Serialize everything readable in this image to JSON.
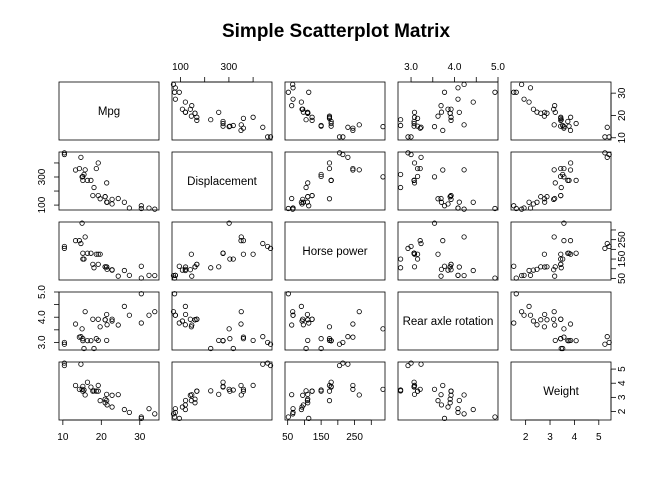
{
  "chart_data": {
    "type": "scatter",
    "title": "Simple Scatterplot Matrix",
    "variables": [
      {
        "key": "mpg",
        "label": "Mpg",
        "lim": [
          9,
          35
        ],
        "ticks": [
          10,
          20,
          30
        ],
        "tick_labels": [
          "10",
          "20",
          "30"
        ]
      },
      {
        "key": "disp",
        "label": "Displacement",
        "lim": [
          65,
          478
        ],
        "ticks": [
          100,
          200,
          300,
          400
        ],
        "tick_labels": [
          "100",
          "",
          "300",
          ""
        ]
      },
      {
        "key": "hp",
        "label": "Horse power",
        "lim": [
          42,
          341
        ],
        "ticks": [
          50,
          100,
          150,
          200,
          250,
          300
        ],
        "tick_labels": [
          "50",
          "",
          "150",
          "",
          "250",
          ""
        ]
      },
      {
        "key": "drat",
        "label": "Rear axle rotation",
        "lim": [
          2.7,
          5.0
        ],
        "ticks": [
          3.0,
          3.5,
          4.0,
          4.5,
          5.0
        ],
        "tick_labels": [
          "3.0",
          "",
          "4.0",
          "",
          "5.0"
        ]
      },
      {
        "key": "wt",
        "label": "Weight",
        "lim": [
          1.4,
          5.5
        ],
        "ticks": [
          2,
          3,
          4,
          5
        ],
        "tick_labels": [
          "2",
          "3",
          "4",
          "5"
        ]
      }
    ],
    "observations": {
      "mpg": [
        21.0,
        21.0,
        22.8,
        21.4,
        18.7,
        18.1,
        14.3,
        24.4,
        22.8,
        19.2,
        17.8,
        16.4,
        17.3,
        15.2,
        10.4,
        10.4,
        14.7,
        32.4,
        30.4,
        33.9,
        21.5,
        15.5,
        15.2,
        13.3,
        19.2,
        27.3,
        26.0,
        30.4,
        15.8,
        19.7,
        15.0,
        21.4
      ],
      "disp": [
        160,
        160,
        108,
        258,
        360,
        225,
        360,
        146.7,
        140.8,
        167.6,
        167.6,
        275.8,
        275.8,
        275.8,
        472,
        460,
        440,
        78.7,
        75.7,
        71.1,
        120.1,
        318,
        304,
        350,
        400,
        79,
        120.3,
        95.1,
        351,
        145,
        301,
        121
      ],
      "hp": [
        110,
        110,
        93,
        110,
        175,
        105,
        245,
        62,
        95,
        123,
        123,
        180,
        180,
        180,
        205,
        215,
        230,
        66,
        52,
        65,
        97,
        150,
        150,
        245,
        175,
        66,
        91,
        113,
        264,
        175,
        335,
        109
      ],
      "drat": [
        3.9,
        3.9,
        3.85,
        3.08,
        3.15,
        2.76,
        3.21,
        3.69,
        3.92,
        3.92,
        3.92,
        3.07,
        3.07,
        3.07,
        2.93,
        3.0,
        3.23,
        4.08,
        4.93,
        4.22,
        3.7,
        2.76,
        3.15,
        3.73,
        3.08,
        4.08,
        4.43,
        3.77,
        4.22,
        3.62,
        3.54,
        4.11
      ],
      "wt": [
        2.62,
        2.875,
        2.32,
        3.215,
        3.44,
        3.46,
        3.57,
        3.19,
        3.15,
        3.44,
        3.44,
        4.07,
        3.73,
        3.78,
        5.25,
        5.424,
        5.345,
        2.2,
        1.615,
        1.835,
        2.465,
        3.52,
        3.435,
        3.84,
        3.845,
        1.935,
        2.14,
        1.513,
        3.17,
        2.77,
        3.57,
        2.78
      ]
    }
  }
}
